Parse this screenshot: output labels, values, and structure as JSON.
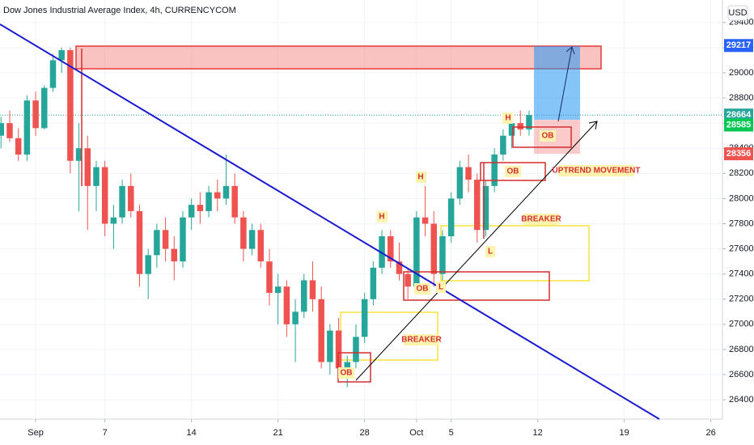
{
  "chart_data": {
    "type": "candlestick",
    "title": "Dow Jones Industrial Average Index, 4h, CURRENCYCOM",
    "currency": "USD",
    "up_color": "#26a69a",
    "down_color": "#ef5350",
    "x": [
      -2,
      -1.5,
      -1,
      -0.5,
      0,
      0.5,
      1,
      1.5,
      2,
      2.5,
      3,
      3.5,
      4,
      4.5,
      5,
      5.5,
      6,
      6.5,
      7,
      7.5,
      8,
      8.5,
      9,
      9.5,
      10,
      10.5,
      11,
      11.5,
      12,
      12.5,
      13,
      13.5,
      14,
      14.5,
      15,
      15.5,
      16,
      16.5,
      17,
      17.5,
      18,
      18.5,
      19,
      19.5,
      20,
      20.5,
      21,
      21.5,
      22,
      22.5,
      23,
      23.5,
      24,
      24.5,
      25,
      25.5,
      26,
      26.5,
      27,
      27.5,
      28,
      28.5
    ],
    "open": [
      28500,
      28600,
      28480,
      28350,
      28780,
      28560,
      28880,
      29100,
      29180,
      28300,
      28400,
      28100,
      28250,
      27800,
      27850,
      28100,
      27900,
      27400,
      27550,
      27750,
      27600,
      27500,
      27850,
      27950,
      27900,
      28050,
      28000,
      28100,
      27850,
      27600,
      27750,
      27500,
      27250,
      27300,
      27000,
      27100,
      27350,
      27200,
      26700,
      26950,
      26650,
      26700,
      26900,
      27200,
      27450,
      27700,
      27500,
      27400,
      27300,
      27850,
      27800,
      27400,
      27700,
      28000,
      28250,
      28150,
      27750,
      28100,
      28350,
      28500,
      28600,
      28550
    ],
    "high": [
      28650,
      28700,
      28560,
      28820,
      28850,
      28900,
      29150,
      29200,
      29200,
      28600,
      28500,
      28300,
      28300,
      27950,
      28150,
      28200,
      27950,
      27600,
      27800,
      27850,
      27700,
      27900,
      28000,
      28050,
      28100,
      28150,
      28350,
      28200,
      27900,
      27800,
      27800,
      27600,
      27400,
      27350,
      27200,
      27400,
      27500,
      27300,
      27000,
      27050,
      26750,
      27000,
      27250,
      27500,
      27750,
      27750,
      27650,
      27450,
      27900,
      28100,
      27900,
      27750,
      28050,
      28300,
      28350,
      28200,
      28150,
      28400,
      28550,
      28650,
      28700,
      28700
    ],
    "low": [
      28400,
      28450,
      28300,
      28300,
      28500,
      28550,
      28850,
      29000,
      28200,
      27900,
      27750,
      27900,
      27700,
      27600,
      27800,
      27850,
      27300,
      27200,
      27450,
      27500,
      27350,
      27450,
      27750,
      27800,
      27850,
      27900,
      27950,
      27800,
      27500,
      27550,
      27450,
      27150,
      27000,
      26900,
      26700,
      27050,
      27100,
      26650,
      26600,
      26600,
      26500,
      26650,
      26850,
      27150,
      27400,
      27450,
      27350,
      27200,
      27250,
      27700,
      27300,
      27350,
      27650,
      27950,
      28050,
      27650,
      27700,
      28050,
      28300,
      28400,
      28500,
      28500
    ],
    "close": [
      28600,
      28480,
      28350,
      28780,
      28560,
      28880,
      29100,
      29180,
      28300,
      28400,
      28100,
      28250,
      27800,
      27850,
      28100,
      27900,
      27400,
      27550,
      27750,
      27600,
      27500,
      27850,
      27950,
      27900,
      28050,
      28000,
      28100,
      27850,
      27600,
      27750,
      27500,
      27250,
      27300,
      27000,
      27100,
      27350,
      27200,
      26700,
      26950,
      26650,
      26700,
      26900,
      27200,
      27450,
      27700,
      27500,
      27400,
      27300,
      27850,
      27800,
      27400,
      27700,
      28000,
      28250,
      28150,
      27750,
      28100,
      28350,
      28500,
      28600,
      28550,
      28664
    ],
    "xlim": [
      -2.06,
      39.67
    ],
    "xticks": [
      {
        "value": 0,
        "label": "Sep"
      },
      {
        "value": 4,
        "label": "7"
      },
      {
        "value": 9,
        "label": "14"
      },
      {
        "value": 14,
        "label": "21"
      },
      {
        "value": 19,
        "label": "28"
      },
      {
        "value": 22,
        "label": "Oct"
      },
      {
        "value": 24,
        "label": "5"
      },
      {
        "value": 29,
        "label": "12"
      },
      {
        "value": 34,
        "label": "19"
      },
      {
        "value": 39,
        "label": "26"
      }
    ],
    "ylim": [
      26246,
      29579
    ],
    "yticks": [
      26400,
      26600,
      26800,
      27000,
      27200,
      27400,
      27600,
      27800,
      28000,
      28200,
      28400,
      28600,
      28800,
      29000,
      29200,
      29400
    ],
    "price_labels": [
      {
        "value": 29217,
        "color": "#2962ff"
      },
      {
        "value": 28664,
        "color": "#26a69a"
      },
      {
        "value": 28585,
        "color": "#00c853"
      },
      {
        "value": 28356,
        "color": "#ef5350"
      }
    ],
    "annotations": {
      "ob": "OB",
      "high": "H",
      "low": "L",
      "breaker": "BREAKER",
      "uptrend": "UPTREND MOVEMENT"
    }
  }
}
